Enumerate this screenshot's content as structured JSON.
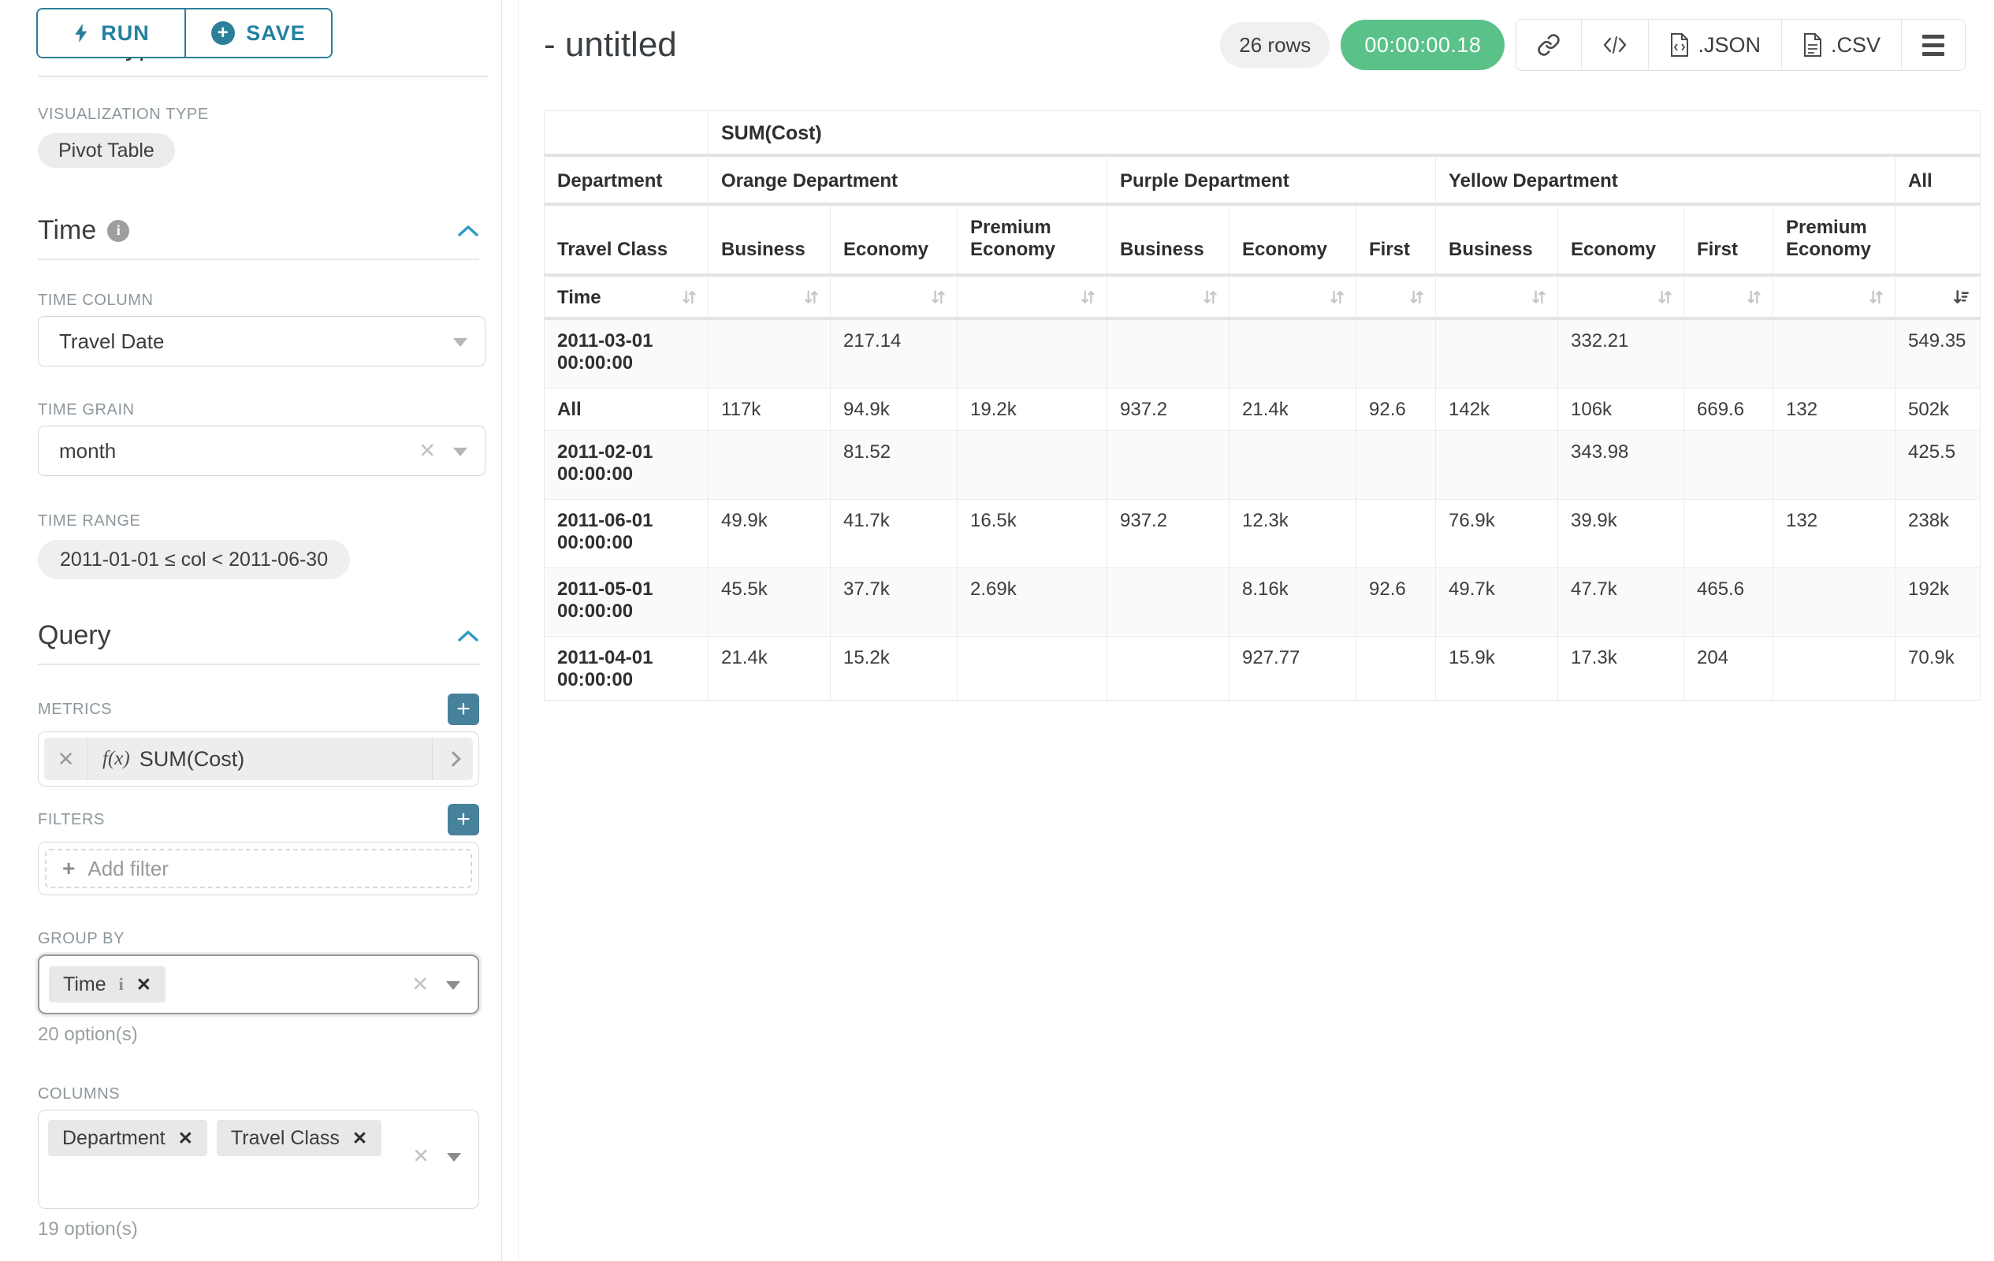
{
  "colors": {
    "accent": "#20a7c9",
    "button_teal": "#2c7f99",
    "timer_green": "#5ac189"
  },
  "icons": {
    "run": "lightning-bolt",
    "save": "plus-circle",
    "sections": "chevron-up",
    "time_info": "info-circle",
    "toolbar": [
      "link",
      "code",
      "json-file",
      "csv-file",
      "menu"
    ],
    "sort_inactive": "arrows-up-down",
    "sort_active": "sort-descending"
  },
  "sidebar": {
    "run_label": "RUN",
    "save_label": "SAVE",
    "chart_type_heading": "Chart Type",
    "viz_type_label": "VISUALIZATION TYPE",
    "viz_type_value": "Pivot Table",
    "time": {
      "title": "Time",
      "column_label": "TIME COLUMN",
      "column_value": "Travel Date",
      "grain_label": "TIME GRAIN",
      "grain_value": "month",
      "range_label": "TIME RANGE",
      "range_value": "2011-01-01 ≤ col < 2011-06-30"
    },
    "query": {
      "title": "Query",
      "metrics_label": "METRICS",
      "metric_fx": "f(x)",
      "metric_value": "SUM(Cost)",
      "filters_label": "FILTERS",
      "add_filter_label": "Add filter",
      "group_by_label": "GROUP BY",
      "group_by_pills": [
        "Time"
      ],
      "group_by_hint": "20 option(s)",
      "columns_label": "COLUMNS",
      "columns_pills": [
        "Department",
        "Travel Class"
      ],
      "columns_hint": "19 option(s)"
    }
  },
  "header": {
    "title": "- untitled",
    "rows_badge": "26 rows",
    "timer": "00:00:00.18",
    "json_label": ".JSON",
    "csv_label": ".CSV"
  },
  "chart_data": {
    "type": "table",
    "metric_header": "SUM(Cost)",
    "corner_department": "Department",
    "corner_travel_class": "Travel Class",
    "corner_time": "Time",
    "dept_groups": [
      {
        "label": "Orange Department",
        "span": 3
      },
      {
        "label": "Purple Department",
        "span": 3
      },
      {
        "label": "Yellow Department",
        "span": 4
      },
      {
        "label": "All",
        "span": 1
      }
    ],
    "class_headers": [
      "Business",
      "Economy",
      "Premium Economy",
      "Business",
      "Economy",
      "First",
      "Business",
      "Economy",
      "First",
      "Premium Economy",
      ""
    ],
    "rows": [
      {
        "time": "2011-03-01 00:00:00",
        "values": [
          "",
          "217.14",
          "",
          "",
          "",
          "",
          "",
          "332.21",
          "",
          "",
          "549.35"
        ]
      },
      {
        "time": "All",
        "values": [
          "117k",
          "94.9k",
          "19.2k",
          "937.2",
          "21.4k",
          "92.6",
          "142k",
          "106k",
          "669.6",
          "132",
          "502k"
        ]
      },
      {
        "time": "2011-02-01 00:00:00",
        "values": [
          "",
          "81.52",
          "",
          "",
          "",
          "",
          "",
          "343.98",
          "",
          "",
          "425.5"
        ]
      },
      {
        "time": "2011-06-01 00:00:00",
        "values": [
          "49.9k",
          "41.7k",
          "16.5k",
          "937.2",
          "12.3k",
          "",
          "76.9k",
          "39.9k",
          "",
          "132",
          "238k"
        ]
      },
      {
        "time": "2011-05-01 00:00:00",
        "values": [
          "45.5k",
          "37.7k",
          "2.69k",
          "",
          "8.16k",
          "92.6",
          "49.7k",
          "47.7k",
          "465.6",
          "",
          "192k"
        ]
      },
      {
        "time": "2011-04-01 00:00:00",
        "values": [
          "21.4k",
          "15.2k",
          "",
          "",
          "927.77",
          "",
          "15.9k",
          "17.3k",
          "204",
          "",
          "70.9k"
        ]
      }
    ]
  }
}
